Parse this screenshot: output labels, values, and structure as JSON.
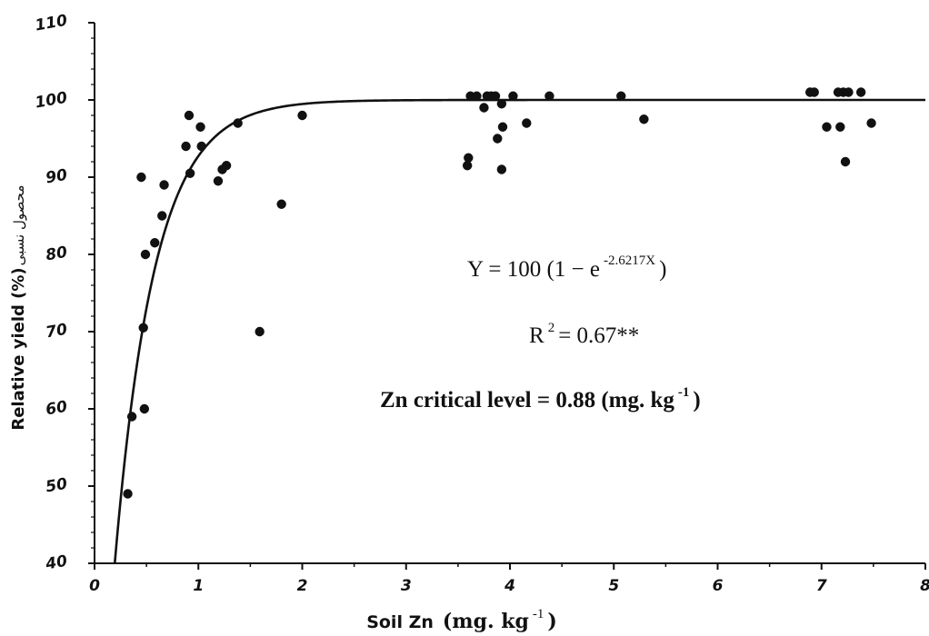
{
  "chart_data": {
    "type": "scatter",
    "xlabel_main": "Soil Zn",
    "xlabel_unit": "(mg. kg",
    "xlabel_exp": "-1",
    "xlabel_close": ")",
    "ylabel": "Relative yield (%)",
    "ylabel_arabic": "محصول نسبی",
    "xlim": [
      0,
      8
    ],
    "ylim": [
      40,
      110
    ],
    "x_ticks": [
      "0",
      "1",
      "2",
      "3",
      "4",
      "5",
      "6",
      "7",
      "8"
    ],
    "y_ticks": [
      "40",
      "50",
      "60",
      "70",
      "80",
      "90",
      "100",
      "110"
    ],
    "points": [
      [
        0.32,
        49
      ],
      [
        0.36,
        59
      ],
      [
        0.45,
        90
      ],
      [
        0.47,
        70.5
      ],
      [
        0.48,
        60
      ],
      [
        0.49,
        80
      ],
      [
        0.58,
        81.5
      ],
      [
        0.65,
        85
      ],
      [
        0.67,
        89
      ],
      [
        0.88,
        94
      ],
      [
        0.91,
        98
      ],
      [
        0.92,
        90.5
      ],
      [
        1.02,
        96.5
      ],
      [
        1.03,
        94
      ],
      [
        1.19,
        89.5
      ],
      [
        1.23,
        91
      ],
      [
        1.27,
        91.5
      ],
      [
        1.38,
        97
      ],
      [
        1.59,
        70
      ],
      [
        1.8,
        86.5
      ],
      [
        2.0,
        98
      ],
      [
        3.59,
        91.5
      ],
      [
        3.6,
        92.5
      ],
      [
        3.62,
        100.5
      ],
      [
        3.68,
        100.5
      ],
      [
        3.75,
        99
      ],
      [
        3.78,
        100.5
      ],
      [
        3.82,
        100.5
      ],
      [
        3.86,
        100.5
      ],
      [
        3.88,
        95
      ],
      [
        3.92,
        91
      ],
      [
        3.92,
        99.5
      ],
      [
        3.93,
        96.5
      ],
      [
        4.03,
        100.5
      ],
      [
        4.16,
        97
      ],
      [
        4.38,
        100.5
      ],
      [
        5.07,
        100.5
      ],
      [
        5.29,
        97.5
      ],
      [
        6.89,
        101
      ],
      [
        6.93,
        101
      ],
      [
        7.05,
        96.5
      ],
      [
        7.16,
        101
      ],
      [
        7.18,
        96.5
      ],
      [
        7.21,
        101
      ],
      [
        7.23,
        92
      ],
      [
        7.26,
        101
      ],
      [
        7.38,
        101
      ],
      [
        7.48,
        97
      ]
    ],
    "curve": {
      "equation": "Y = 100 (1 − e",
      "exponent": "-2.6217X",
      "equation_close": ")",
      "coefficient": 2.6217,
      "asymptote": 100
    },
    "r2_label": "R",
    "r2_sup": "2",
    "r2_value": " = 0.67**",
    "critical_text": "Zn critical level = 0.88 (mg. kg",
    "critical_exp": "-1",
    "critical_close": ")"
  }
}
